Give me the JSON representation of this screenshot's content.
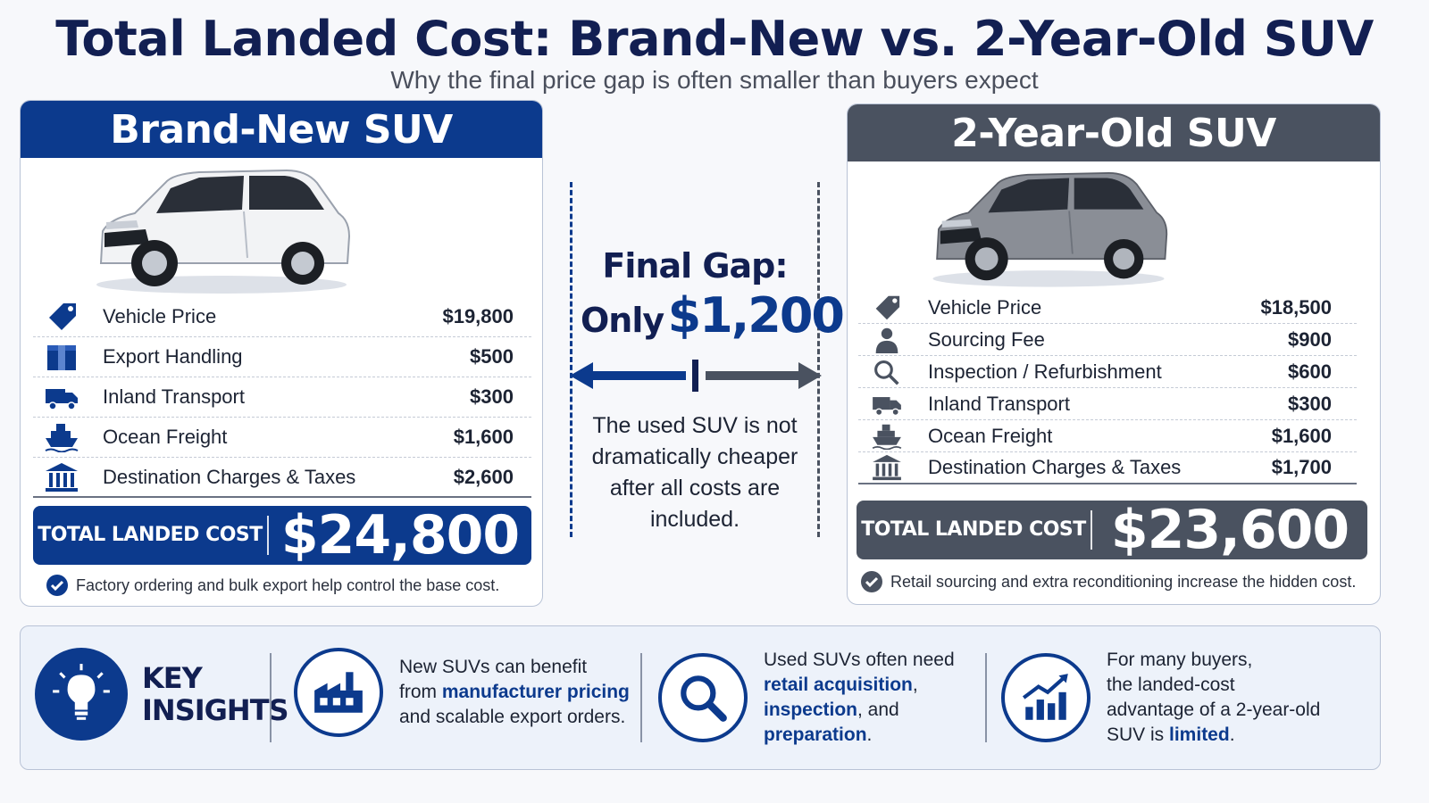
{
  "header": {
    "title": "Total Landed Cost: Brand-New vs. 2-Year-Old SUV",
    "subtitle": "Why the final price gap is often smaller than buyers expect"
  },
  "new_suv": {
    "title": "Brand-New SUV",
    "car_color": "#f2f3f5",
    "costs": [
      {
        "icon": "price-tag-icon",
        "label": "Vehicle Price",
        "value": "$19,800"
      },
      {
        "icon": "box-icon",
        "label": "Export Handling",
        "value": "$500"
      },
      {
        "icon": "truck-icon",
        "label": "Inland Transport",
        "value": "$300"
      },
      {
        "icon": "ship-icon",
        "label": "Ocean Freight",
        "value": "$1,600"
      },
      {
        "icon": "bank-icon",
        "label": "Destination Charges & Taxes",
        "value": "$2,600"
      }
    ],
    "total_label": "TOTAL LANDED COST",
    "total_value": "$24,800",
    "note": "Factory ordering and bulk export help control the base cost."
  },
  "used_suv": {
    "title": "2-Year-Old SUV",
    "car_color": "#8a8e96",
    "costs": [
      {
        "icon": "price-tag-icon",
        "label": "Vehicle Price",
        "value": "$18,500"
      },
      {
        "icon": "person-icon",
        "label": "Sourcing Fee",
        "value": "$900"
      },
      {
        "icon": "magnifier-icon",
        "label": "Inspection / Refurbishment",
        "value": "$600"
      },
      {
        "icon": "truck-icon",
        "label": "Inland Transport",
        "value": "$300"
      },
      {
        "icon": "ship-icon",
        "label": "Ocean Freight",
        "value": "$1,600"
      },
      {
        "icon": "bank-icon",
        "label": "Destination Charges & Taxes",
        "value": "$1,700"
      }
    ],
    "total_label": "TOTAL LANDED COST",
    "total_value": "$23,600",
    "note": "Retail sourcing and extra reconditioning increase the hidden cost."
  },
  "gap": {
    "title": "Final Gap:",
    "prefix": "Only",
    "amount": "$1,200",
    "caption": "The used SUV is not dramatically cheaper after all costs are included."
  },
  "insights": {
    "heading_line1": "KEY",
    "heading_line2": "INSIGHTS",
    "items": [
      {
        "icon": "factory-icon",
        "t1": "New SUVs can benefit",
        "t2": "from ",
        "h1": "manufacturer pricing",
        "t3": "and scalable export orders."
      },
      {
        "icon": "magnifier-icon",
        "t1": "Used SUVs often need",
        "h1": "retail acquisition",
        "t2": ",",
        "h2": "inspection",
        "t3": ", and",
        "h3": "preparation",
        "t4": "."
      },
      {
        "icon": "growth-chart-icon",
        "t1": "For many buyers,",
        "t2": "the landed-cost",
        "t3": "advantage of a 2-year-old",
        "t4": "SUV is ",
        "h1": "limited",
        "t5": "."
      }
    ]
  },
  "colors": {
    "new_accent": "#0c3a8d",
    "used_accent": "#4a5260",
    "title_navy": "#121f52"
  }
}
